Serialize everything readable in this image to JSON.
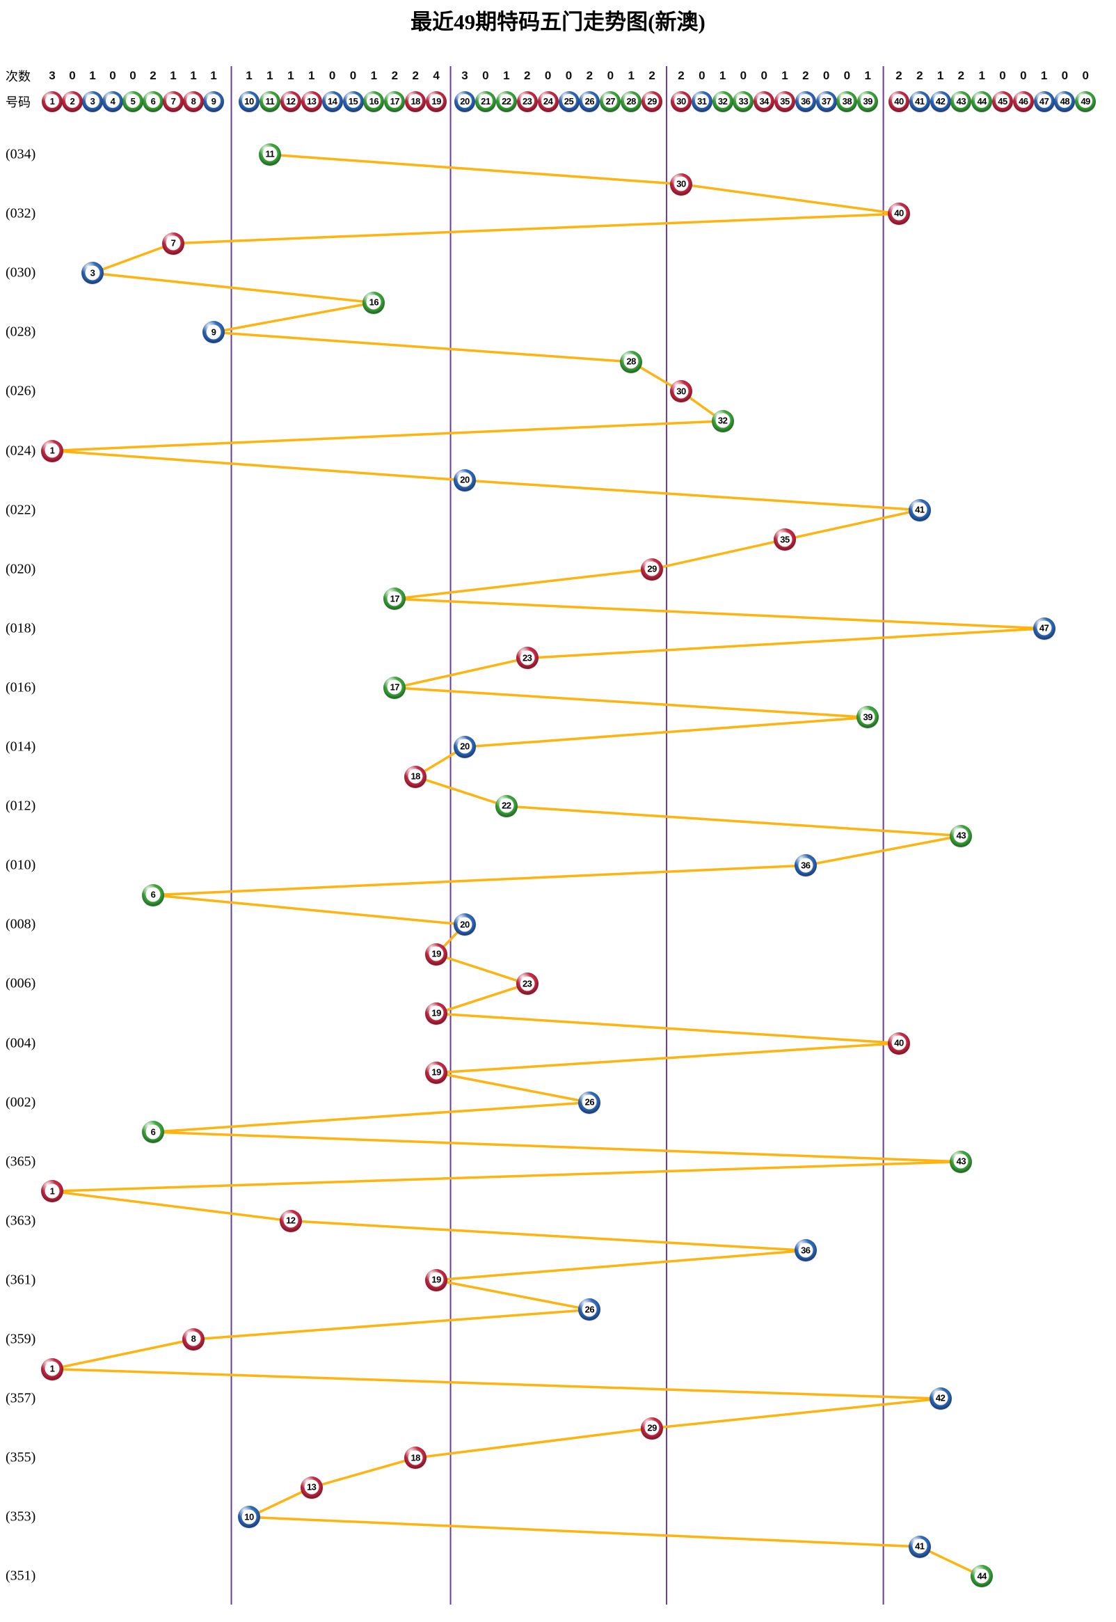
{
  "title": "最近49期特码五门走势图(新澳)",
  "header": {
    "count_label": "次数",
    "number_label": "号码",
    "counts": [
      3,
      0,
      1,
      0,
      0,
      2,
      1,
      1,
      1,
      1,
      1,
      1,
      1,
      0,
      0,
      1,
      2,
      2,
      4,
      3,
      0,
      1,
      2,
      0,
      0,
      2,
      0,
      1,
      2,
      2,
      0,
      1,
      0,
      0,
      1,
      2,
      0,
      0,
      1,
      2,
      2,
      1,
      2,
      1,
      0,
      0,
      1,
      0,
      0
    ],
    "numbers": [
      1,
      2,
      3,
      4,
      5,
      6,
      7,
      8,
      9,
      10,
      11,
      12,
      13,
      14,
      15,
      16,
      17,
      18,
      19,
      20,
      21,
      22,
      23,
      24,
      25,
      26,
      27,
      28,
      29,
      30,
      31,
      32,
      33,
      34,
      35,
      36,
      37,
      38,
      39,
      40,
      41,
      42,
      43,
      44,
      45,
      46,
      47,
      48,
      49
    ]
  },
  "chart_data": {
    "type": "line",
    "title": "最近49期特码五门走势图(新澳)",
    "x_axis_numbers": [
      1,
      2,
      3,
      4,
      5,
      6,
      7,
      8,
      9,
      10,
      11,
      12,
      13,
      14,
      15,
      16,
      17,
      18,
      19,
      20,
      21,
      22,
      23,
      24,
      25,
      26,
      27,
      28,
      29,
      30,
      31,
      32,
      33,
      34,
      35,
      36,
      37,
      38,
      39,
      40,
      41,
      42,
      43,
      44,
      45,
      46,
      47,
      48,
      49
    ],
    "column_counts": [
      3,
      0,
      1,
      0,
      0,
      2,
      1,
      1,
      1,
      1,
      1,
      1,
      1,
      0,
      0,
      1,
      2,
      2,
      4,
      3,
      0,
      1,
      2,
      0,
      0,
      2,
      0,
      1,
      2,
      2,
      0,
      1,
      0,
      0,
      1,
      2,
      0,
      0,
      1,
      2,
      2,
      1,
      2,
      1,
      0,
      0,
      1,
      0,
      0
    ],
    "sections": [
      [
        1,
        9
      ],
      [
        10,
        19
      ],
      [
        20,
        29
      ],
      [
        30,
        39
      ],
      [
        40,
        49
      ]
    ],
    "rows": [
      {
        "period": "(034)",
        "value": 11
      },
      {
        "period": "",
        "value": 30
      },
      {
        "period": "(032)",
        "value": 40
      },
      {
        "period": "",
        "value": 7
      },
      {
        "period": "(030)",
        "value": 3
      },
      {
        "period": "",
        "value": 16
      },
      {
        "period": "(028)",
        "value": 9
      },
      {
        "period": "",
        "value": 28
      },
      {
        "period": "(026)",
        "value": 30
      },
      {
        "period": "",
        "value": 32
      },
      {
        "period": "(024)",
        "value": 1
      },
      {
        "period": "",
        "value": 20
      },
      {
        "period": "(022)",
        "value": 41
      },
      {
        "period": "",
        "value": 35
      },
      {
        "period": "(020)",
        "value": 29
      },
      {
        "period": "",
        "value": 17
      },
      {
        "period": "(018)",
        "value": 47
      },
      {
        "period": "",
        "value": 23
      },
      {
        "period": "(016)",
        "value": 17
      },
      {
        "period": "",
        "value": 39
      },
      {
        "period": "(014)",
        "value": 20
      },
      {
        "period": "",
        "value": 18
      },
      {
        "period": "(012)",
        "value": 22
      },
      {
        "period": "",
        "value": 43
      },
      {
        "period": "(010)",
        "value": 36
      },
      {
        "period": "",
        "value": 6
      },
      {
        "period": "(008)",
        "value": 20
      },
      {
        "period": "",
        "value": 19
      },
      {
        "period": "(006)",
        "value": 23
      },
      {
        "period": "",
        "value": 19
      },
      {
        "period": "(004)",
        "value": 40
      },
      {
        "period": "",
        "value": 19
      },
      {
        "period": "(002)",
        "value": 26
      },
      {
        "period": "",
        "value": 6
      },
      {
        "period": "(365)",
        "value": 43
      },
      {
        "period": "",
        "value": 1
      },
      {
        "period": "(363)",
        "value": 12
      },
      {
        "period": "",
        "value": 36
      },
      {
        "period": "(361)",
        "value": 19
      },
      {
        "period": "",
        "value": 26
      },
      {
        "period": "(359)",
        "value": 8
      },
      {
        "period": "",
        "value": 1
      },
      {
        "period": "(357)",
        "value": 42
      },
      {
        "period": "",
        "value": 29
      },
      {
        "period": "(355)",
        "value": 18
      },
      {
        "period": "",
        "value": 13
      },
      {
        "period": "(353)",
        "value": 10
      },
      {
        "period": "",
        "value": 41
      },
      {
        "period": "(351)",
        "value": 44
      }
    ],
    "color_groups": {
      "red": [
        1,
        2,
        7,
        8,
        12,
        13,
        18,
        19,
        23,
        24,
        29,
        30,
        34,
        35,
        40,
        45,
        46
      ],
      "blue": [
        3,
        4,
        9,
        10,
        14,
        15,
        20,
        25,
        26,
        31,
        36,
        37,
        41,
        42,
        47,
        48
      ],
      "green": [
        5,
        6,
        11,
        16,
        17,
        21,
        22,
        27,
        28,
        32,
        33,
        38,
        39,
        43,
        44,
        49
      ]
    },
    "colors": {
      "red_ball": {
        "base": "#C22743",
        "dark": "#8C1528",
        "highlight": "#E8697E"
      },
      "blue_ball": {
        "base": "#2E66B5",
        "dark": "#173F85",
        "highlight": "#6F9FD8"
      },
      "green_ball": {
        "base": "#3BA23B",
        "dark": "#1F7022",
        "highlight": "#79C879"
      },
      "trend_line": "#FFB30F",
      "divider": "#6A3A9E",
      "text": "#000000"
    },
    "legend_position": "none",
    "grid": "vertical section dividers only"
  }
}
